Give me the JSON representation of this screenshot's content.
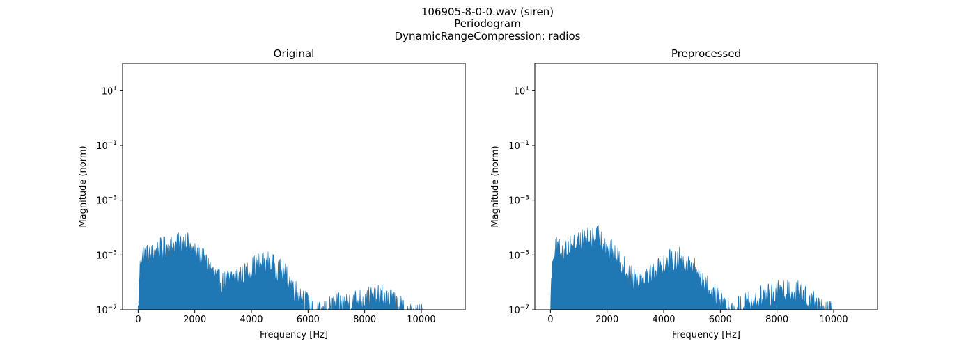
{
  "figure": {
    "suptitle_lines": [
      "106905-8-0-0.wav (siren)",
      "Periodogram",
      "DynamicRangeCompression: radios"
    ]
  },
  "chart_data": [
    {
      "type": "area",
      "title": "Original",
      "xlabel": "Frequency [Hz]",
      "ylabel": "Magnitude (norm)",
      "xlim": [
        -550,
        11550
      ],
      "ylim": [
        1e-07,
        100
      ],
      "yscale": "log",
      "grid": false,
      "color": "#1f77b4",
      "x_ticks": [
        0,
        2000,
        4000,
        6000,
        8000,
        10000
      ],
      "x_tick_labels": [
        "0",
        "2000",
        "4000",
        "6000",
        "8000",
        "10000"
      ],
      "y_ticks": [
        {
          "value": 1e-07,
          "base": "10",
          "exponent": "−7"
        },
        {
          "value": 1e-05,
          "base": "10",
          "exponent": "−5"
        },
        {
          "value": 0.001,
          "base": "10",
          "exponent": "−3"
        },
        {
          "value": 0.1,
          "base": "10",
          "exponent": "−1"
        },
        {
          "value": 10,
          "base": "10",
          "exponent": "1"
        }
      ],
      "envelope": {
        "x": [
          0,
          50,
          100,
          200,
          400,
          600,
          800,
          1000,
          1200,
          1400,
          1600,
          1700,
          1800,
          2000,
          2200,
          2400,
          2600,
          2800,
          3000,
          3200,
          3400,
          3600,
          3800,
          4000,
          4200,
          4400,
          4600,
          4800,
          5000,
          5200,
          5400,
          5600,
          5800,
          6000,
          6200,
          6400,
          6600,
          6800,
          7000,
          7200,
          7400,
          7600,
          7800,
          8000,
          8200,
          8400,
          8600,
          8800,
          9000,
          9200,
          9400,
          9600,
          9800,
          10000,
          10200
        ],
        "y": [
          1.5e-07,
          3e-06,
          1.6e-05,
          1.8e-05,
          1.5e-05,
          2e-05,
          2.6e-05,
          3.2e-05,
          3.4e-05,
          3.8e-05,
          4.8e-05,
          5.8e-05,
          3.5e-05,
          2e-05,
          1.4e-05,
          8e-06,
          4.5e-06,
          2.2e-06,
          1.5e-06,
          2e-06,
          2.6e-06,
          3e-06,
          3.3e-06,
          5e-06,
          7.5e-06,
          8e-06,
          8.5e-06,
          6e-06,
          4.5e-06,
          3e-06,
          1.5e-06,
          7e-07,
          5e-07,
          2.5e-07,
          1.4e-07,
          1.2e-07,
          1.5e-07,
          2e-07,
          2.4e-07,
          2.6e-07,
          3e-07,
          3.5e-07,
          3.8e-07,
          4e-07,
          4.5e-07,
          4.8e-07,
          5e-07,
          4.5e-07,
          3.5e-07,
          2.2e-07,
          1.6e-07,
          1.2e-07,
          1.05e-07,
          1.02e-07,
          1e-07
        ]
      }
    },
    {
      "type": "area",
      "title": "Preprocessed",
      "xlabel": "Frequency [Hz]",
      "ylabel": "Magnitude (norm)",
      "xlim": [
        -550,
        11550
      ],
      "ylim": [
        1e-07,
        100
      ],
      "yscale": "log",
      "grid": false,
      "color": "#1f77b4",
      "x_ticks": [
        0,
        2000,
        4000,
        6000,
        8000,
        10000
      ],
      "x_tick_labels": [
        "0",
        "2000",
        "4000",
        "6000",
        "8000",
        "10000"
      ],
      "y_ticks": [
        {
          "value": 1e-07,
          "base": "10",
          "exponent": "−7"
        },
        {
          "value": 1e-05,
          "base": "10",
          "exponent": "−5"
        },
        {
          "value": 0.001,
          "base": "10",
          "exponent": "−3"
        },
        {
          "value": 0.1,
          "base": "10",
          "exponent": "−1"
        },
        {
          "value": 10,
          "base": "10",
          "exponent": "1"
        }
      ],
      "envelope": {
        "x": [
          0,
          50,
          100,
          200,
          400,
          600,
          800,
          1000,
          1200,
          1400,
          1600,
          1700,
          1800,
          2000,
          2200,
          2400,
          2600,
          2800,
          3000,
          3200,
          3400,
          3600,
          3800,
          4000,
          4200,
          4400,
          4600,
          4800,
          5000,
          5200,
          5400,
          5600,
          5800,
          6000,
          6200,
          6400,
          6600,
          6800,
          7000,
          7200,
          7400,
          7600,
          7800,
          8000,
          8200,
          8400,
          8600,
          8800,
          9000,
          9200,
          9400,
          9600,
          9800,
          10000,
          10050
        ],
        "y": [
          1.5e-07,
          4e-06,
          2.5e-05,
          2.8e-05,
          2.2e-05,
          3e-05,
          4e-05,
          5e-05,
          6e-05,
          6.5e-05,
          7.5e-05,
          8e-05,
          5.5e-05,
          3e-05,
          2e-05,
          1.1e-05,
          6e-06,
          3e-06,
          2e-06,
          2.5e-06,
          3.5e-06,
          4e-06,
          5e-06,
          7e-06,
          1e-05,
          1.1e-05,
          1.2e-05,
          8e-06,
          6e-06,
          4e-06,
          2e-06,
          9e-07,
          6e-07,
          3e-07,
          1.8e-07,
          1.5e-07,
          2e-07,
          2.5e-07,
          3e-07,
          3.5e-07,
          4.5e-07,
          5.5e-07,
          6e-07,
          7e-07,
          8e-07,
          8.5e-07,
          8e-07,
          7e-07,
          5.5e-07,
          3.5e-07,
          2.5e-07,
          1.8e-07,
          1.3e-07,
          1.2e-07,
          1e-07
        ]
      }
    }
  ]
}
